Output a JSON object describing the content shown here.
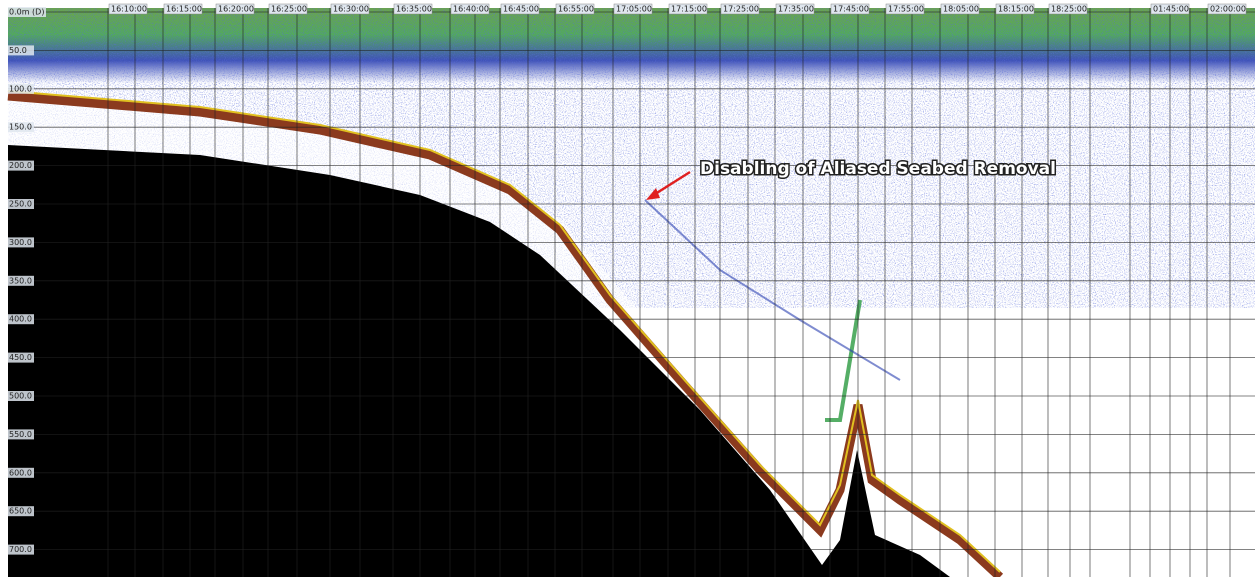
{
  "time_labels": [
    "16:10:00",
    "16:15:00",
    "16:20:00",
    "16:25:00",
    "16:30:00",
    "16:35:00",
    "16:40:00",
    "16:45:00",
    "16:55:00",
    "17:05:00",
    "17:15:00",
    "17:25:00",
    "17:35:00",
    "17:45:00",
    "17:55:00",
    "18:05:00",
    "18:15:00",
    "18:25:00",
    "01:45:00",
    "02:00:00"
  ],
  "depth_labels": [
    "0.0m (D)",
    "50.0",
    "100.0",
    "150.0",
    "200.0",
    "250.0",
    "300.0",
    "350.0",
    "400.0",
    "450.0",
    "500.0",
    "550.0",
    "600.0",
    "650.0",
    "700.0"
  ],
  "annotation": "Disabling of Aliased Seabed Removal"
}
